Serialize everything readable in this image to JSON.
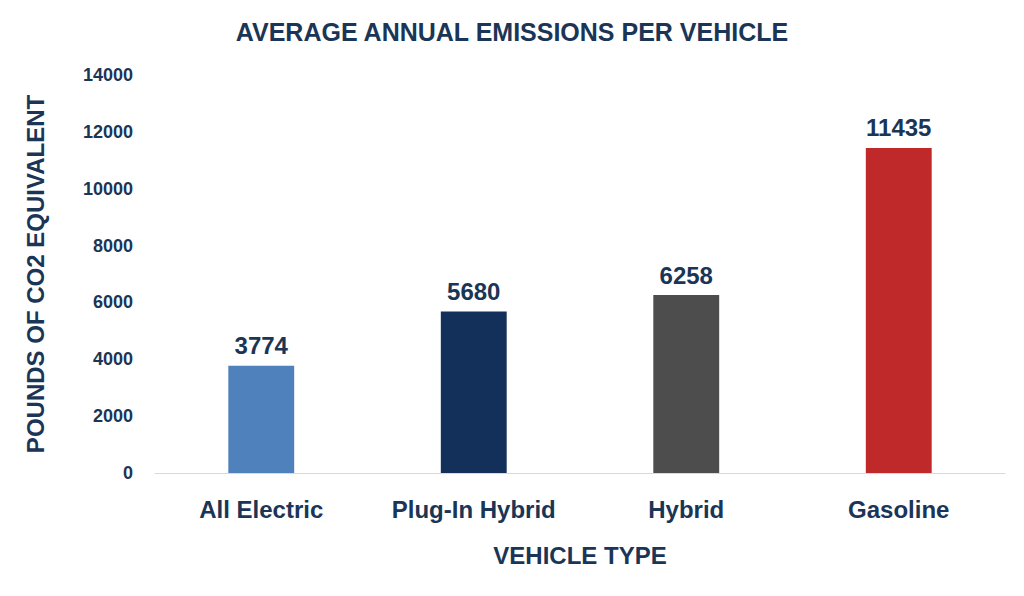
{
  "chart_data": {
    "type": "bar",
    "title": "AVERAGE ANNUAL EMISSIONS PER VEHICLE",
    "x_label": "VEHICLE TYPE",
    "y_label": "POUNDS OF CO2 EQUIVALENT",
    "categories": [
      "All Electric",
      "Plug-In Hybrid",
      "Hybrid",
      "Gasoline"
    ],
    "values": [
      3774,
      5680,
      6258,
      11435
    ],
    "colors": [
      "#4f81bd",
      "#12305a",
      "#4d4d4d",
      "#c0292a"
    ],
    "ylim": [
      0,
      14000
    ],
    "yticks": [
      0,
      2000,
      4000,
      6000,
      8000,
      10000,
      12000,
      14000
    ],
    "grid": false,
    "data_labels": true
  }
}
